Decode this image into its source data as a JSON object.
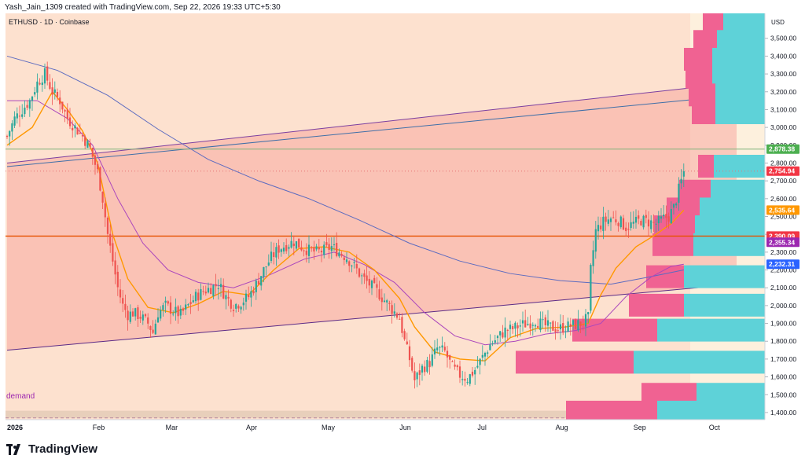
{
  "header": {
    "credit": "Yash_Jain_1309 created with TradingView.com, Sep 22, 2026 19:33 UTC+5:30"
  },
  "branding": {
    "logo_text": "TradingView",
    "logo_icon": "tradingview-logo-icon"
  },
  "chart_data": {
    "type": "candlestick",
    "symbol": "ETHUSD · 1D · Coinbase",
    "currency": "USD",
    "y_ticks": [
      "3,500.00",
      "3,400.00",
      "3,300.00",
      "3,200.00",
      "3,100.00",
      "3,000.00",
      "2,900.00",
      "2,800.00",
      "2,700.00",
      "2,600.00",
      "2,500.00",
      "2,400.00",
      "2,300.00",
      "2,200.00",
      "2,100.00",
      "2,000.00",
      "1,900.00",
      "1,800.00",
      "1,700.00",
      "1,600.00",
      "1,500.00",
      "1,400.00"
    ],
    "y_tick_values": [
      3500,
      3400,
      3300,
      3200,
      3100,
      3000,
      2900,
      2800,
      2700,
      2600,
      2500,
      2400,
      2300,
      2200,
      2100,
      2000,
      1900,
      1800,
      1700,
      1600,
      1500,
      1400
    ],
    "x_ticks": [
      "2026",
      "Feb",
      "Mar",
      "Apr",
      "May",
      "Jun",
      "Jul",
      "Aug",
      "Sep",
      "Oct"
    ],
    "price_labels": [
      {
        "text": "2,878.38",
        "value": 2878.38,
        "color": "#4caf50"
      },
      {
        "text": "2,754.94",
        "value": 2754.94,
        "color": "#f23645"
      },
      {
        "text": "2,535.64",
        "value": 2535.64,
        "color": "#ff9800"
      },
      {
        "text": "2,390.09",
        "value": 2390.09,
        "color": "#f23645"
      },
      {
        "text": "2,355.34",
        "value": 2355.34,
        "color": "#9c27b0"
      },
      {
        "text": "2,232.31",
        "value": 2232.31,
        "color": "#2962ff"
      }
    ],
    "annotation": "demand",
    "horizontal_levels": [
      2878.38,
      2390.09
    ],
    "close_path": [
      [
        0,
        2950
      ],
      [
        3,
        3050
      ],
      [
        6,
        3100
      ],
      [
        9,
        3150
      ],
      [
        12,
        3250
      ],
      [
        15,
        3300
      ],
      [
        18,
        3200
      ],
      [
        21,
        3150
      ],
      [
        24,
        3050
      ],
      [
        27,
        3000
      ],
      [
        30,
        2950
      ],
      [
        33,
        2880
      ],
      [
        36,
        2750
      ],
      [
        38,
        2600
      ],
      [
        40,
        2400
      ],
      [
        42,
        2250
      ],
      [
        44,
        2100
      ],
      [
        46,
        2000
      ],
      [
        48,
        1950
      ],
      [
        50,
        1960
      ],
      [
        53,
        1940
      ],
      [
        56,
        1900
      ],
      [
        58,
        1850
      ],
      [
        60,
        1960
      ],
      [
        63,
        2000
      ],
      [
        66,
        1970
      ],
      [
        69,
        1950
      ],
      [
        72,
        2000
      ],
      [
        75,
        2050
      ],
      [
        78,
        2080
      ],
      [
        81,
        2100
      ],
      [
        84,
        2120
      ],
      [
        87,
        2050
      ],
      [
        90,
        2000
      ],
      [
        93,
        2020
      ],
      [
        96,
        2050
      ],
      [
        99,
        2120
      ],
      [
        102,
        2200
      ],
      [
        105,
        2270
      ],
      [
        108,
        2320
      ],
      [
        111,
        2340
      ],
      [
        114,
        2360
      ],
      [
        117,
        2330
      ],
      [
        120,
        2310
      ],
      [
        123,
        2300
      ],
      [
        126,
        2310
      ],
      [
        129,
        2330
      ],
      [
        132,
        2300
      ],
      [
        135,
        2270
      ],
      [
        138,
        2220
      ],
      [
        141,
        2160
      ],
      [
        144,
        2120
      ],
      [
        147,
        2080
      ],
      [
        150,
        2030
      ],
      [
        153,
        1980
      ],
      [
        156,
        1930
      ],
      [
        158,
        1800
      ],
      [
        160,
        1700
      ],
      [
        162,
        1580
      ],
      [
        165,
        1650
      ],
      [
        168,
        1680
      ],
      [
        171,
        1760
      ],
      [
        174,
        1740
      ],
      [
        177,
        1650
      ],
      [
        180,
        1610
      ],
      [
        183,
        1590
      ],
      [
        186,
        1640
      ],
      [
        189,
        1710
      ],
      [
        192,
        1780
      ],
      [
        195,
        1820
      ],
      [
        198,
        1860
      ],
      [
        201,
        1870
      ],
      [
        204,
        1890
      ],
      [
        207,
        1900
      ],
      [
        210,
        1920
      ],
      [
        213,
        1890
      ],
      [
        216,
        1880
      ],
      [
        219,
        1870
      ],
      [
        222,
        1880
      ],
      [
        225,
        1890
      ],
      [
        228,
        1900
      ],
      [
        231,
        1930
      ],
      [
        232,
        2200
      ],
      [
        234,
        2420
      ],
      [
        237,
        2470
      ],
      [
        240,
        2490
      ],
      [
        243,
        2480
      ],
      [
        246,
        2440
      ],
      [
        249,
        2460
      ],
      [
        252,
        2480
      ],
      [
        255,
        2470
      ],
      [
        258,
        2460
      ],
      [
        261,
        2490
      ],
      [
        263,
        2500
      ],
      [
        265,
        2550
      ],
      [
        267,
        2650
      ],
      [
        269,
        2750
      ]
    ],
    "ema_fast_path": [
      [
        0,
        2900
      ],
      [
        10,
        3000
      ],
      [
        18,
        3200
      ],
      [
        24,
        3100
      ],
      [
        30,
        2980
      ],
      [
        36,
        2800
      ],
      [
        42,
        2400
      ],
      [
        48,
        2150
      ],
      [
        56,
        1990
      ],
      [
        66,
        1960
      ],
      [
        76,
        2010
      ],
      [
        86,
        2080
      ],
      [
        96,
        2060
      ],
      [
        106,
        2200
      ],
      [
        116,
        2320
      ],
      [
        126,
        2330
      ],
      [
        136,
        2300
      ],
      [
        146,
        2200
      ],
      [
        156,
        2040
      ],
      [
        162,
        1880
      ],
      [
        170,
        1740
      ],
      [
        180,
        1700
      ],
      [
        190,
        1690
      ],
      [
        200,
        1820
      ],
      [
        210,
        1870
      ],
      [
        222,
        1880
      ],
      [
        231,
        1900
      ],
      [
        236,
        2060
      ],
      [
        242,
        2210
      ],
      [
        250,
        2330
      ],
      [
        258,
        2400
      ],
      [
        264,
        2460
      ],
      [
        269,
        2535.64
      ]
    ],
    "ema_mid_path": [
      [
        0,
        3150
      ],
      [
        12,
        3150
      ],
      [
        24,
        3050
      ],
      [
        34,
        2900
      ],
      [
        44,
        2600
      ],
      [
        54,
        2350
      ],
      [
        64,
        2200
      ],
      [
        76,
        2130
      ],
      [
        90,
        2100
      ],
      [
        104,
        2170
      ],
      [
        118,
        2260
      ],
      [
        130,
        2300
      ],
      [
        142,
        2230
      ],
      [
        154,
        2130
      ],
      [
        166,
        1960
      ],
      [
        178,
        1830
      ],
      [
        190,
        1780
      ],
      [
        202,
        1800
      ],
      [
        214,
        1840
      ],
      [
        226,
        1860
      ],
      [
        236,
        1900
      ],
      [
        246,
        2050
      ],
      [
        256,
        2160
      ],
      [
        264,
        2220
      ],
      [
        269,
        2232.31
      ]
    ],
    "ema_slow_path": [
      [
        0,
        3400
      ],
      [
        20,
        3320
      ],
      [
        40,
        3180
      ],
      [
        60,
        2990
      ],
      [
        80,
        2820
      ],
      [
        100,
        2700
      ],
      [
        120,
        2600
      ],
      [
        140,
        2480
      ],
      [
        160,
        2350
      ],
      [
        180,
        2250
      ],
      [
        200,
        2180
      ],
      [
        220,
        2140
      ],
      [
        240,
        2120
      ],
      [
        255,
        2160
      ],
      [
        269,
        2200
      ]
    ],
    "channel_upper": [
      [
        0,
        2800
      ],
      [
        290,
        3250
      ]
    ],
    "channel_lower": [
      [
        0,
        1750
      ],
      [
        290,
        2120
      ]
    ],
    "trendline_blue": [
      [
        0,
        2780
      ],
      [
        290,
        3180
      ]
    ],
    "volume_profile_right": [
      {
        "price": 3580,
        "red": 26,
        "teal": 26
      },
      {
        "price": 3480,
        "red": 30,
        "teal": 34
      },
      {
        "price": 3380,
        "red": 36,
        "teal": 40
      },
      {
        "price": 3280,
        "red": 34,
        "teal": 40
      },
      {
        "price": 3180,
        "red": 34,
        "teal": 36
      },
      {
        "price": 3080,
        "red": 30,
        "teal": 36
      },
      {
        "price": 2780,
        "red": 20,
        "teal": 38
      },
      {
        "price": 2640,
        "red": 40,
        "teal": 42
      },
      {
        "price": 2540,
        "red": 42,
        "teal": 56
      },
      {
        "price": 2440,
        "red": 52,
        "teal": 62
      },
      {
        "price": 2340,
        "red": 52,
        "teal": 64
      },
      {
        "price": 2160,
        "red": 48,
        "teal": 76
      },
      {
        "price": 2000,
        "red": 70,
        "teal": 76
      },
      {
        "price": 1860,
        "red": 108,
        "teal": 110
      },
      {
        "price": 1680,
        "red": 150,
        "teal": 140
      },
      {
        "price": 1500,
        "red": 70,
        "teal": 60
      },
      {
        "price": 1400,
        "red": 116,
        "teal": 110
      }
    ],
    "grid": false,
    "legend": "none"
  }
}
